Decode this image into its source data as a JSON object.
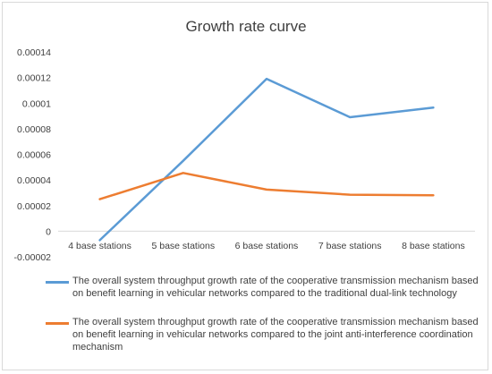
{
  "chart_data": {
    "type": "line",
    "title": "Growth rate curve",
    "categories": [
      "4 base stations",
      "5 base stations",
      "6 base stations",
      "7 base stations",
      "8 base stations"
    ],
    "ylim": [
      -2e-05,
      0.00014
    ],
    "yticks": [
      "0.00014",
      "0.00012",
      "0.0001",
      "0.00008",
      "0.00006",
      "0.00004",
      "0.00002",
      "0",
      "-0.00002"
    ],
    "grid": false,
    "legend_position": "bottom",
    "series": [
      {
        "name": "The overall system throughput growth rate of the cooperative transmission mechanism based on benefit learning in vehicular networks compared to the traditional dual-link technology",
        "color": "#5B9BD5",
        "values": [
          -7e-06,
          5.5e-05,
          0.000119,
          8.9e-05,
          9.65e-05
        ]
      },
      {
        "name": "The overall system throughput growth rate of the cooperative transmission mechanism based on benefit learning in vehicular networks compared to the joint anti-interference coordination mechanism",
        "color": "#ED7D31",
        "values": [
          2.5e-05,
          4.55e-05,
          3.25e-05,
          2.85e-05,
          2.8e-05
        ]
      }
    ]
  }
}
